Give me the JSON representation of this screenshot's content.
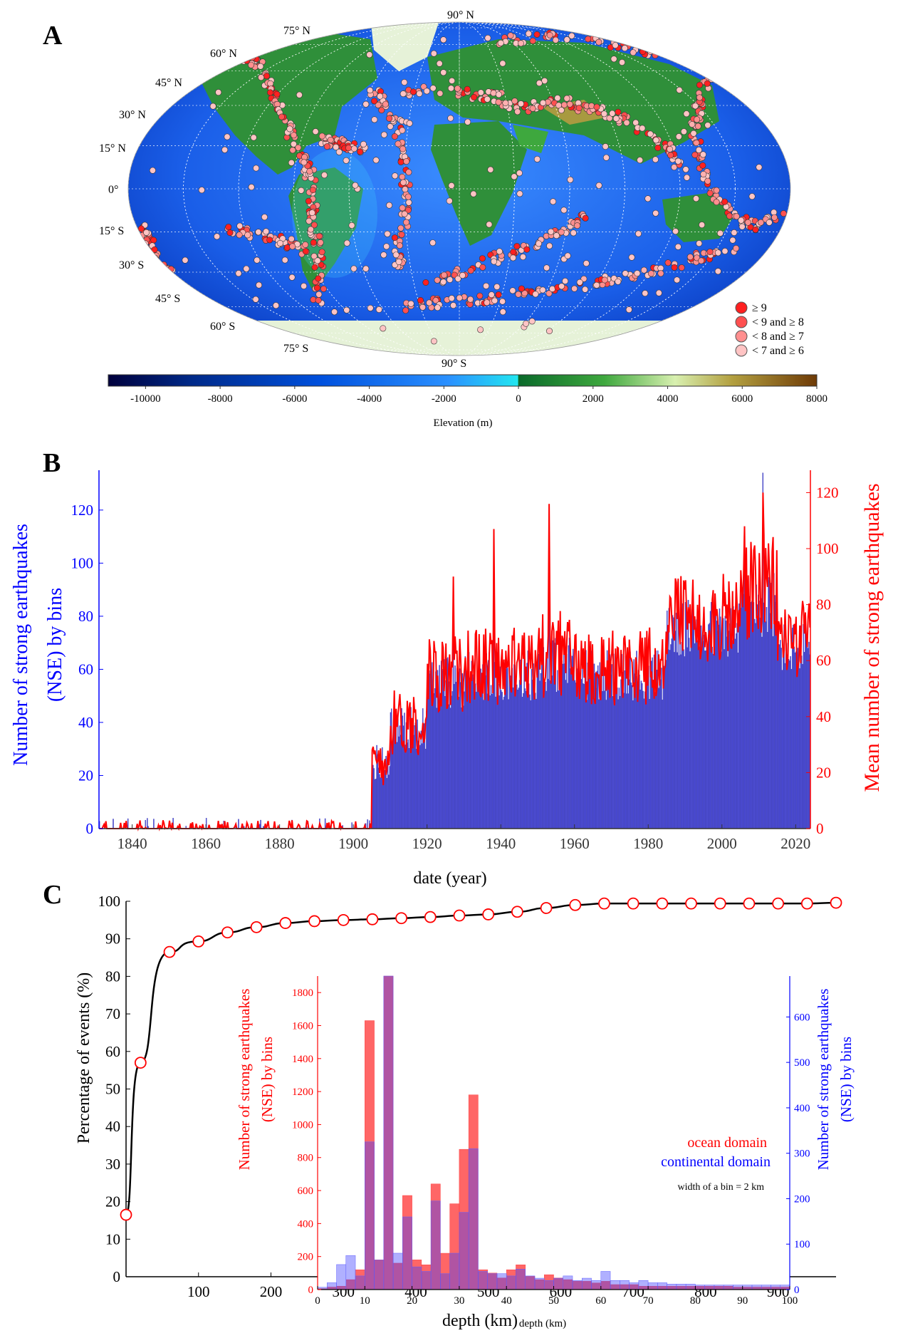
{
  "panels": {
    "a": "A",
    "b": "B",
    "c": "C"
  },
  "colors": {
    "blue": "#0000ff",
    "red": "#ff0000",
    "bar_blue": "#4b4bd6",
    "purple": "#8b2a8c",
    "ocean_red": "#ff6060",
    "cont_blue": "#a8a8f4"
  },
  "chart_data": [
    {
      "type": "scatter",
      "panel": "A",
      "description_type": "map",
      "lat_labels_north": [
        "90° N",
        "75° N",
        "60° N",
        "45° N",
        "30° N",
        "15° N",
        "0°"
      ],
      "lat_labels_south": [
        "15° S",
        "30° S",
        "45° S",
        "60° S",
        "75° S",
        "90° S"
      ],
      "legend": [
        {
          "label": "≥ 9",
          "color": "#ff2020"
        },
        {
          "label": "< 9 and ≥ 8",
          "color": "#ff5050"
        },
        {
          "label": "< 8 and ≥ 7",
          "color": "#ff8f8f"
        },
        {
          "label": "< 7 and ≥ 6",
          "color": "#ffc4c4"
        }
      ],
      "colorbar": {
        "label": "Elevation (m)",
        "ticks": [
          "-10000",
          "-8000",
          "-6000",
          "-4000",
          "-2000",
          "0",
          "2000",
          "4000",
          "6000",
          "8000"
        ],
        "range": [
          -11000,
          8000
        ]
      }
    },
    {
      "type": "bar",
      "panel": "B",
      "xlabel": "date (year)",
      "ylabel_left": "Number of strong earthquakes (NSE) by bins",
      "ylabel_right": "Mean number of strong earthquakes",
      "xlim": [
        1831,
        2024
      ],
      "ylim_left": [
        0,
        135
      ],
      "ylim_right": [
        0,
        128
      ],
      "xticks": [
        "1840",
        "1860",
        "1880",
        "1900",
        "1920",
        "1940",
        "1960",
        "1980",
        "2000",
        "2020"
      ],
      "yticks_left": [
        "0",
        "20",
        "40",
        "60",
        "80",
        "100",
        "120"
      ],
      "yticks_right": [
        "0",
        "20",
        "40",
        "60",
        "80",
        "100",
        "120"
      ],
      "series": [
        {
          "kind": "bar",
          "description": "quarterly NSE counts",
          "color": "#4b4bd6"
        },
        {
          "kind": "line",
          "description": "mean NSE",
          "color": "#ff0000"
        }
      ],
      "segments": [
        {
          "from": 1831,
          "to": 1905,
          "level": 0.5,
          "noise": 1.2
        },
        {
          "from": 1905,
          "to": 1910,
          "level": 25,
          "noise": 10
        },
        {
          "from": 1910,
          "to": 1920,
          "level": 38,
          "noise": 12
        },
        {
          "from": 1920,
          "to": 1930,
          "level": 55,
          "noise": 14
        },
        {
          "from": 1930,
          "to": 1950,
          "level": 58,
          "noise": 14
        },
        {
          "from": 1950,
          "to": 1960,
          "level": 62,
          "noise": 16
        },
        {
          "from": 1960,
          "to": 1985,
          "level": 58,
          "noise": 14
        },
        {
          "from": 1985,
          "to": 2005,
          "level": 75,
          "noise": 16
        },
        {
          "from": 2005,
          "to": 2015,
          "level": 85,
          "noise": 20
        },
        {
          "from": 2015,
          "to": 2024,
          "level": 68,
          "noise": 14
        }
      ],
      "peaks": [
        {
          "x": 1953,
          "y_line": 116,
          "y_bar": 107
        },
        {
          "x": 2011,
          "y_line": 120,
          "y_bar": 134
        },
        {
          "x": 1938,
          "y_line": 107,
          "y_bar": 95
        },
        {
          "x": 1927,
          "y_line": 90,
          "y_bar": 80
        },
        {
          "x": 2006,
          "y_line": 108,
          "y_bar": 100
        }
      ]
    },
    {
      "type": "line",
      "panel": "C",
      "xlabel": "depth (km)",
      "ylabel": "Percentage of events (%)",
      "xlim": [
        0,
        980
      ],
      "ylim": [
        0,
        100
      ],
      "xticks": [
        "100",
        "200",
        "300",
        "400",
        "500",
        "600",
        "700",
        "800",
        "900"
      ],
      "yticks": [
        "0",
        "10",
        "20",
        "30",
        "40",
        "50",
        "60",
        "70",
        "80",
        "90",
        "100"
      ],
      "x": [
        0,
        20,
        60,
        100,
        140,
        180,
        220,
        260,
        300,
        340,
        380,
        420,
        460,
        500,
        540,
        580,
        620,
        660,
        700,
        740,
        780,
        820,
        860,
        900,
        940,
        980
      ],
      "y": [
        16.5,
        57,
        86.5,
        89.3,
        91.7,
        93.1,
        94.2,
        94.7,
        95.0,
        95.2,
        95.5,
        95.8,
        96.2,
        96.5,
        97.2,
        98.2,
        99.0,
        99.4,
        99.4,
        99.4,
        99.4,
        99.4,
        99.4,
        99.4,
        99.4,
        99.6
      ],
      "inset": {
        "type": "bar",
        "xlabel": "depth (km)",
        "ylabel_left": "Number of strong earthquakes (NSE) by bins",
        "ylabel_right": "Number of strong earthquakes (NSE) by bins",
        "xlim": [
          0,
          100
        ],
        "ylim_left": [
          0,
          1900
        ],
        "ylim_right": [
          0,
          690
        ],
        "xticks": [
          "0",
          "10",
          "20",
          "30",
          "40",
          "50",
          "60",
          "70",
          "80",
          "90",
          "100"
        ],
        "yticks_left": [
          "0",
          "200",
          "400",
          "600",
          "800",
          "1000",
          "1200",
          "1400",
          "1600",
          "1800"
        ],
        "yticks_right": [
          "0",
          "100",
          "200",
          "300",
          "400",
          "500",
          "600"
        ],
        "bin_width": 2,
        "annotation": "width of a bin = 2 km",
        "series": [
          {
            "name": "ocean domain",
            "color": "#ff0000",
            "values": [
              5,
              15,
              20,
              60,
              120,
              1630,
              180,
              1900,
              160,
              570,
              180,
              150,
              640,
              220,
              520,
              850,
              1180,
              120,
              100,
              70,
              120,
              150,
              80,
              60,
              90,
              70,
              60,
              50,
              50,
              40,
              50,
              30,
              30,
              30,
              20,
              20,
              20,
              20,
              20,
              20,
              20,
              20,
              20,
              20,
              15,
              15,
              15,
              15,
              15,
              15
            ]
          },
          {
            "name": "continental domain",
            "color": "#0000ff",
            "values": [
              5,
              15,
              55,
              75,
              30,
              325,
              65,
              690,
              80,
              160,
              50,
              40,
              195,
              35,
              80,
              170,
              310,
              40,
              35,
              35,
              30,
              45,
              30,
              25,
              20,
              25,
              30,
              20,
              25,
              20,
              40,
              20,
              20,
              15,
              20,
              15,
              15,
              12,
              12,
              12,
              10,
              10,
              10,
              10,
              10,
              10,
              10,
              10,
              10,
              10
            ]
          }
        ]
      }
    }
  ]
}
